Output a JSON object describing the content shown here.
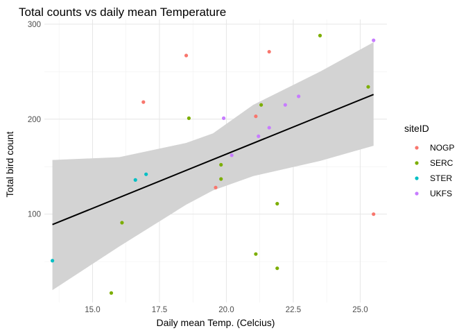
{
  "chart_data": {
    "type": "scatter",
    "title": "Total counts vs daily mean Temperature",
    "xlabel": "Daily mean Temp. (Celcius)",
    "ylabel": "Total bird count",
    "xlim": [
      13.2,
      26.0
    ],
    "ylim": [
      7,
      305
    ],
    "x_ticks": [
      15.0,
      17.5,
      20.0,
      22.5,
      25.0
    ],
    "x_tick_labels": [
      "15.0",
      "17.5",
      "20.0",
      "22.5",
      "25.0"
    ],
    "y_ticks": [
      100,
      200,
      300
    ],
    "y_tick_labels": [
      "100",
      "200",
      "300"
    ],
    "grid": true,
    "legend": {
      "title": "siteID",
      "placement": "right",
      "entries": [
        "NOGP",
        "SERC",
        "STER",
        "UKFS"
      ]
    },
    "series": [
      {
        "name": "NOGP",
        "color": "#F8766D",
        "points": [
          [
            16.9,
            218
          ],
          [
            18.5,
            267
          ],
          [
            19.6,
            128
          ],
          [
            21.1,
            203
          ],
          [
            21.6,
            271
          ],
          [
            25.5,
            100
          ]
        ]
      },
      {
        "name": "SERC",
        "color": "#7CAE00",
        "points": [
          [
            15.7,
            17
          ],
          [
            16.1,
            91
          ],
          [
            18.6,
            201
          ],
          [
            19.8,
            137
          ],
          [
            19.8,
            152
          ],
          [
            21.1,
            58
          ],
          [
            21.3,
            215
          ],
          [
            21.9,
            111
          ],
          [
            21.9,
            43
          ],
          [
            23.5,
            288
          ],
          [
            25.3,
            234
          ]
        ]
      },
      {
        "name": "STER",
        "color": "#00BFC4",
        "points": [
          [
            13.5,
            51
          ],
          [
            16.6,
            136
          ],
          [
            17.0,
            142
          ]
        ]
      },
      {
        "name": "UKFS",
        "color": "#C77CFF",
        "points": [
          [
            19.9,
            201
          ],
          [
            20.2,
            162
          ],
          [
            21.2,
            182
          ],
          [
            21.6,
            191
          ],
          [
            22.2,
            215
          ],
          [
            22.7,
            224
          ],
          [
            25.5,
            283
          ]
        ]
      }
    ],
    "trend_line": {
      "type": "linear",
      "color": "#000000",
      "x": [
        13.5,
        25.5
      ],
      "y": [
        89,
        226
      ]
    },
    "confidence_band": {
      "color": "#D3D3D3",
      "x": [
        13.5,
        16.0,
        18.5,
        19.5,
        21.0,
        23.5,
        25.5
      ],
      "lower": [
        20,
        66,
        110,
        125,
        140,
        156,
        172
      ],
      "upper": [
        157,
        160,
        175,
        185,
        215,
        250,
        281
      ]
    }
  }
}
